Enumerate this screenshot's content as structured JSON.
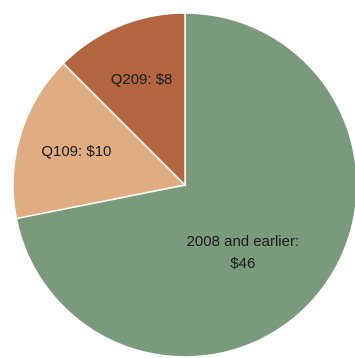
{
  "chart_data": {
    "type": "pie",
    "slices": [
      {
        "category": "2008 and earlier",
        "value": 46,
        "label_lines": [
          "2008 and earlier:",
          "$46"
        ],
        "color": "#7a9a7c"
      },
      {
        "category": "Q109",
        "value": 10,
        "label_lines": [
          "Q109: $10"
        ],
        "color": "#e0ad82"
      },
      {
        "category": "Q209",
        "value": 8,
        "label_lines": [
          "Q209: $8"
        ],
        "color": "#b3653f"
      }
    ],
    "start": "top, clockwise",
    "legend": "none",
    "title": ""
  }
}
